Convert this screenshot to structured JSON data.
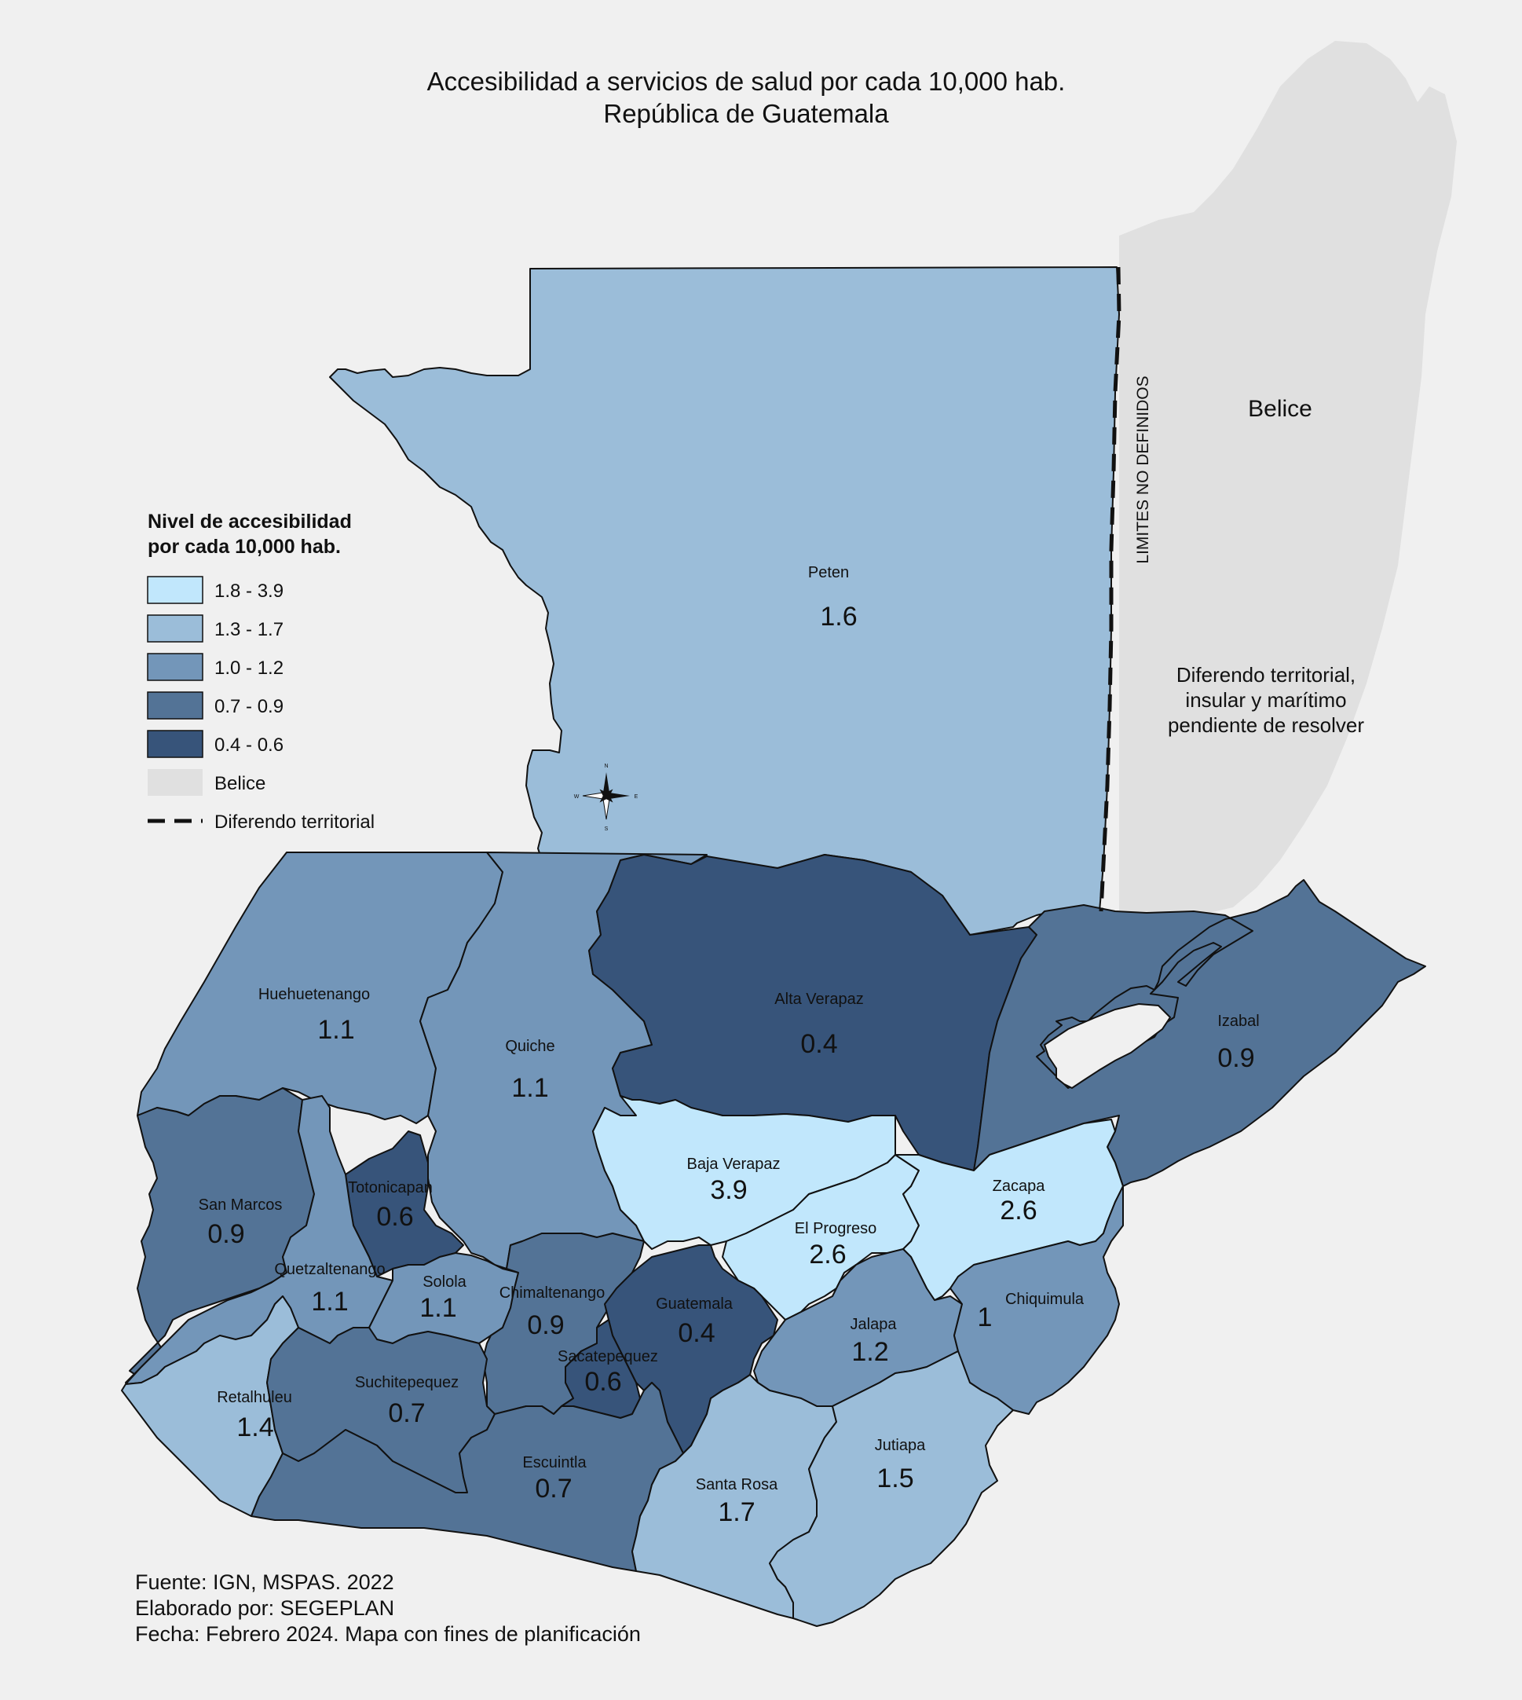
{
  "title": {
    "line1": "Accesibilidad a servicios de salud por cada 10,000 hab.",
    "line2": "República de Guatemala"
  },
  "legend": {
    "title_line1": "Nivel de accesibilidad",
    "title_line2": "por cada 10,000 hab.",
    "classes": [
      {
        "label": "1.8 - 3.9",
        "color": "#c1e7fc"
      },
      {
        "label": "1.3 - 1.7",
        "color": "#9bbdd9"
      },
      {
        "label": "1.0 - 1.2",
        "color": "#7396b9"
      },
      {
        "label": "0.7 - 0.9",
        "color": "#537396"
      },
      {
        "label": "0.4 - 0.6",
        "color": "#37547a"
      }
    ],
    "belice_label": "Belice",
    "belice_color": "#e0e0e0",
    "diferendo_label": "Diferendo territorial"
  },
  "belice": {
    "label": "Belice",
    "diferendo_line1": "Diferendo territorial,",
    "diferendo_line2": "insular y marítimo",
    "diferendo_line3": "pendiente de resolver",
    "limites_label": "LIMITES NO DEFINIDOS"
  },
  "compass": {
    "n": "N",
    "s": "S",
    "e": "E",
    "w": "W"
  },
  "departments": [
    {
      "name": "Peten",
      "value": "1.6"
    },
    {
      "name": "Huehuetenango",
      "value": "1.1"
    },
    {
      "name": "Quiche",
      "value": "1.1"
    },
    {
      "name": "Alta Verapaz",
      "value": "0.4"
    },
    {
      "name": "Izabal",
      "value": "0.9"
    },
    {
      "name": "San Marcos",
      "value": "0.9"
    },
    {
      "name": "Totonicapan",
      "value": "0.6"
    },
    {
      "name": "Quetzaltenango",
      "value": "1.1"
    },
    {
      "name": "Solola",
      "value": "1.1"
    },
    {
      "name": "Chimaltenango",
      "value": "0.9"
    },
    {
      "name": "Baja Verapaz",
      "value": "3.9"
    },
    {
      "name": "El Progreso",
      "value": "2.6"
    },
    {
      "name": "Zacapa",
      "value": "2.6"
    },
    {
      "name": "Guatemala",
      "value": "0.4"
    },
    {
      "name": "Sacatepequez",
      "value": "0.6"
    },
    {
      "name": "Jalapa",
      "value": "1.2"
    },
    {
      "name": "Chiquimula",
      "value": "1"
    },
    {
      "name": "Retalhuleu",
      "value": "1.4"
    },
    {
      "name": "Suchitepequez",
      "value": "0.7"
    },
    {
      "name": "Escuintla",
      "value": "0.7"
    },
    {
      "name": "Santa Rosa",
      "value": "1.7"
    },
    {
      "name": "Jutiapa",
      "value": "1.5"
    }
  ],
  "footer": {
    "line1": "Fuente: IGN, MSPAS. 2022",
    "line2": "Elaborado por: SEGEPLAN",
    "line3": "Fecha: Febrero 2024. Mapa con fines de planificación"
  }
}
